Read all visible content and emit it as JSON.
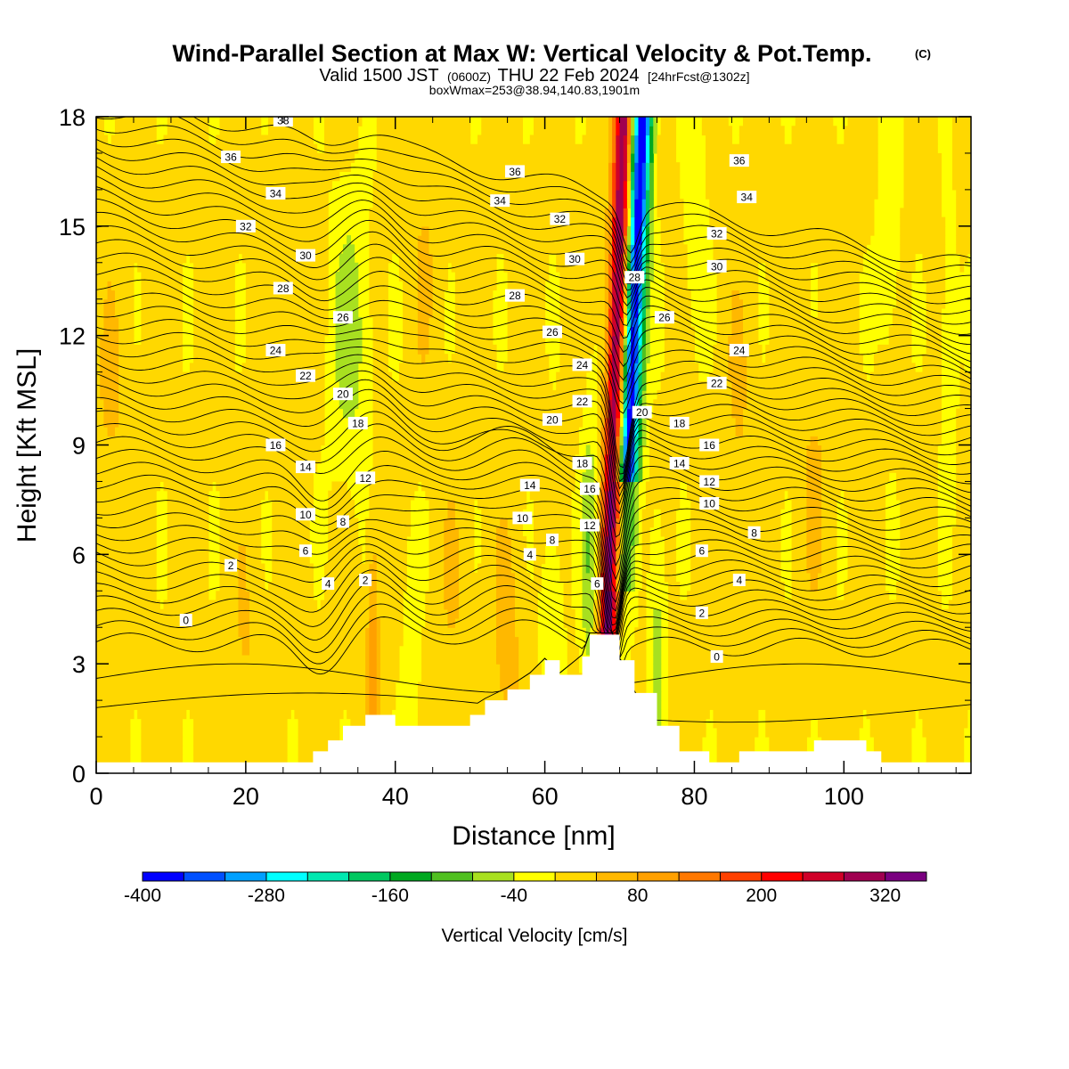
{
  "header": {
    "title": "Wind-Parallel Section at Max W: Vertical Velocity & Pot.Temp.",
    "title_mark": "(C)",
    "valid_prefix": "Valid 1500 JST",
    "valid_utc": "(0600Z)",
    "valid_date": "THU 22 Feb 2024",
    "forecast": "[24hrFcst@1302z]",
    "boxw": "boxWmax=253@38.94,140.83,1901m"
  },
  "chart_data": {
    "type": "heatmap",
    "xlabel": "Distance [nm]",
    "ylabel": "Height [Kft MSL]",
    "xlim": [
      0,
      117
    ],
    "ylim": [
      0,
      18
    ],
    "xticks": [
      "0",
      "20",
      "40",
      "60",
      "80",
      "100"
    ],
    "yticks": [
      "0",
      "3",
      "6",
      "9",
      "12",
      "15",
      "18"
    ],
    "colorbar": {
      "label": "Vertical Velocity [cm/s]",
      "levels": [
        -400,
        -360,
        -320,
        -280,
        -240,
        -200,
        -160,
        -120,
        -80,
        -40,
        0,
        40,
        80,
        120,
        160,
        200,
        240,
        280,
        320,
        360
      ],
      "tick_labels": [
        "-400",
        "-280",
        "-160",
        "-40",
        "80",
        "200",
        "320"
      ],
      "colors": [
        "#0000ff",
        "#0050ff",
        "#00a0ff",
        "#00ffff",
        "#00e8b0",
        "#00c860",
        "#00a820",
        "#50c020",
        "#a8e020",
        "#ffff00",
        "#ffd800",
        "#ffb800",
        "#ffa000",
        "#ff7800",
        "#ff4000",
        "#ff0000",
        "#d00028",
        "#a00050",
        "#7a0080"
      ]
    },
    "terrain_kft": [
      [
        0,
        0.3
      ],
      [
        28,
        0.3
      ],
      [
        29,
        0.6
      ],
      [
        31,
        0.9
      ],
      [
        33,
        1.3
      ],
      [
        36,
        1.6
      ],
      [
        40,
        1.3
      ],
      [
        48,
        1.3
      ],
      [
        50,
        1.6
      ],
      [
        52,
        2.0
      ],
      [
        55,
        2.3
      ],
      [
        58,
        2.7
      ],
      [
        60,
        3.1
      ],
      [
        62,
        2.7
      ],
      [
        65,
        3.2
      ],
      [
        66,
        3.8
      ],
      [
        69,
        3.8
      ],
      [
        70,
        3.1
      ],
      [
        72,
        2.2
      ],
      [
        75,
        1.3
      ],
      [
        78,
        0.6
      ],
      [
        82,
        0.3
      ],
      [
        86,
        0.6
      ],
      [
        95,
        0.6
      ],
      [
        96,
        0.9
      ],
      [
        100,
        0.9
      ],
      [
        103,
        0.6
      ],
      [
        105,
        0.3
      ],
      [
        117,
        0.3
      ]
    ],
    "theta_contours": [
      {
        "label": "0",
        "x": 12,
        "y": 4.2
      },
      {
        "label": "0",
        "x": 83,
        "y": 3.2
      },
      {
        "label": "2",
        "x": 18,
        "y": 5.7
      },
      {
        "label": "2",
        "x": 36,
        "y": 5.3
      },
      {
        "label": "2",
        "x": 81,
        "y": 4.4
      },
      {
        "label": "4",
        "x": 31,
        "y": 5.2
      },
      {
        "label": "4",
        "x": 58,
        "y": 6.0
      },
      {
        "label": "4",
        "x": 86,
        "y": 5.3
      },
      {
        "label": "6",
        "x": 28,
        "y": 6.1
      },
      {
        "label": "6",
        "x": 67,
        "y": 5.2
      },
      {
        "label": "6",
        "x": 81,
        "y": 6.1
      },
      {
        "label": "8",
        "x": 33,
        "y": 6.9
      },
      {
        "label": "8",
        "x": 61,
        "y": 6.4
      },
      {
        "label": "8",
        "x": 88,
        "y": 6.6
      },
      {
        "label": "10",
        "x": 28,
        "y": 7.1
      },
      {
        "label": "10",
        "x": 57,
        "y": 7.0
      },
      {
        "label": "10",
        "x": 82,
        "y": 7.4
      },
      {
        "label": "12",
        "x": 36,
        "y": 8.1
      },
      {
        "label": "12",
        "x": 66,
        "y": 6.8
      },
      {
        "label": "12",
        "x": 82,
        "y": 8.0
      },
      {
        "label": "14",
        "x": 28,
        "y": 8.4
      },
      {
        "label": "14",
        "x": 58,
        "y": 7.9
      },
      {
        "label": "14",
        "x": 78,
        "y": 8.5
      },
      {
        "label": "16",
        "x": 24,
        "y": 9.0
      },
      {
        "label": "16",
        "x": 66,
        "y": 7.8
      },
      {
        "label": "16",
        "x": 82,
        "y": 9.0
      },
      {
        "label": "18",
        "x": 35,
        "y": 9.6
      },
      {
        "label": "18",
        "x": 65,
        "y": 8.5
      },
      {
        "label": "18",
        "x": 78,
        "y": 9.6
      },
      {
        "label": "20",
        "x": 33,
        "y": 10.4
      },
      {
        "label": "20",
        "x": 61,
        "y": 9.7
      },
      {
        "label": "20",
        "x": 73,
        "y": 9.9
      },
      {
        "label": "22",
        "x": 28,
        "y": 10.9
      },
      {
        "label": "22",
        "x": 65,
        "y": 10.2
      },
      {
        "label": "22",
        "x": 83,
        "y": 10.7
      },
      {
        "label": "24",
        "x": 24,
        "y": 11.6
      },
      {
        "label": "24",
        "x": 65,
        "y": 11.2
      },
      {
        "label": "24",
        "x": 86,
        "y": 11.6
      },
      {
        "label": "26",
        "x": 33,
        "y": 12.5
      },
      {
        "label": "26",
        "x": 61,
        "y": 12.1
      },
      {
        "label": "26",
        "x": 76,
        "y": 12.5
      },
      {
        "label": "28",
        "x": 25,
        "y": 13.3
      },
      {
        "label": "28",
        "x": 56,
        "y": 13.1
      },
      {
        "label": "28",
        "x": 72,
        "y": 13.6
      },
      {
        "label": "30",
        "x": 28,
        "y": 14.2
      },
      {
        "label": "30",
        "x": 64,
        "y": 14.1
      },
      {
        "label": "30",
        "x": 83,
        "y": 13.9
      },
      {
        "label": "32",
        "x": 20,
        "y": 15.0
      },
      {
        "label": "32",
        "x": 62,
        "y": 15.2
      },
      {
        "label": "32",
        "x": 83,
        "y": 14.8
      },
      {
        "label": "34",
        "x": 24,
        "y": 15.9
      },
      {
        "label": "34",
        "x": 54,
        "y": 15.7
      },
      {
        "label": "34",
        "x": 87,
        "y": 15.8
      },
      {
        "label": "36",
        "x": 18,
        "y": 16.9
      },
      {
        "label": "36",
        "x": 56,
        "y": 16.5
      },
      {
        "label": "36",
        "x": 86,
        "y": 16.8
      },
      {
        "label": "38",
        "x": 25,
        "y": 17.9
      }
    ]
  }
}
